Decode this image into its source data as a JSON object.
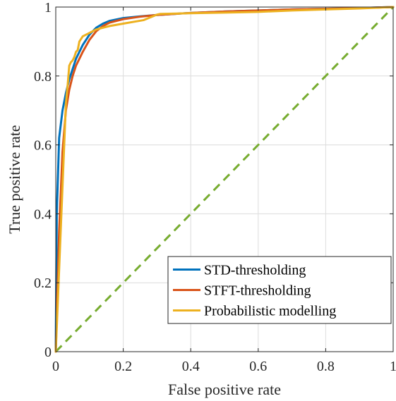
{
  "chart_data": {
    "type": "line",
    "title": "",
    "xlabel": "False positive rate",
    "ylabel": "True positive rate",
    "xlim": [
      0,
      1
    ],
    "ylim": [
      0,
      1
    ],
    "xticks": [
      "0",
      "0.2",
      "0.4",
      "0.6",
      "0.8",
      "1"
    ],
    "yticks": [
      "0",
      "0.2",
      "0.4",
      "0.6",
      "0.8",
      "1"
    ],
    "grid": true,
    "legend_position": "bottom-right",
    "series": [
      {
        "name": "STD-thresholding",
        "color": "#0072BD",
        "x": [
          0,
          0.003,
          0.01,
          0.02,
          0.03,
          0.04,
          0.05,
          0.06,
          0.08,
          0.1,
          0.12,
          0.14,
          0.16,
          0.2,
          0.25,
          0.3,
          0.4,
          0.5,
          0.6,
          0.7,
          0.8,
          0.9,
          1
        ],
        "y": [
          0,
          0.4,
          0.62,
          0.7,
          0.75,
          0.79,
          0.82,
          0.85,
          0.89,
          0.92,
          0.94,
          0.952,
          0.96,
          0.968,
          0.973,
          0.977,
          0.983,
          0.987,
          0.99,
          0.993,
          0.995,
          0.997,
          1
        ]
      },
      {
        "name": "STFT-thresholding",
        "color": "#D95319",
        "x": [
          0,
          0.01,
          0.02,
          0.03,
          0.04,
          0.05,
          0.06,
          0.08,
          0.1,
          0.12,
          0.14,
          0.16,
          0.2,
          0.25,
          0.3,
          0.4,
          0.5,
          0.6,
          0.7,
          0.8,
          0.9,
          1
        ],
        "y": [
          0,
          0.35,
          0.58,
          0.7,
          0.76,
          0.8,
          0.83,
          0.87,
          0.905,
          0.93,
          0.945,
          0.955,
          0.965,
          0.972,
          0.977,
          0.983,
          0.987,
          0.99,
          0.993,
          0.995,
          0.997,
          1
        ]
      },
      {
        "name": "Probabilistic modelling",
        "color": "#EDB120",
        "x": [
          0,
          0.01,
          0.02,
          0.03,
          0.035,
          0.04,
          0.045,
          0.05,
          0.055,
          0.06,
          0.065,
          0.07,
          0.08,
          0.1,
          0.12,
          0.14,
          0.16,
          0.2,
          0.26,
          0.3,
          0.31,
          0.4,
          0.5,
          0.6,
          0.7,
          0.8,
          0.9,
          1
        ],
        "y": [
          0,
          0.24,
          0.48,
          0.72,
          0.77,
          0.83,
          0.84,
          0.845,
          0.855,
          0.87,
          0.875,
          0.9,
          0.915,
          0.925,
          0.935,
          0.94,
          0.945,
          0.952,
          0.962,
          0.978,
          0.98,
          0.982,
          0.984,
          0.986,
          0.99,
          0.993,
          0.996,
          1
        ]
      },
      {
        "name": "",
        "color": "#77AC30",
        "dashed": true,
        "x": [
          0,
          1
        ],
        "y": [
          0,
          1
        ]
      }
    ]
  }
}
